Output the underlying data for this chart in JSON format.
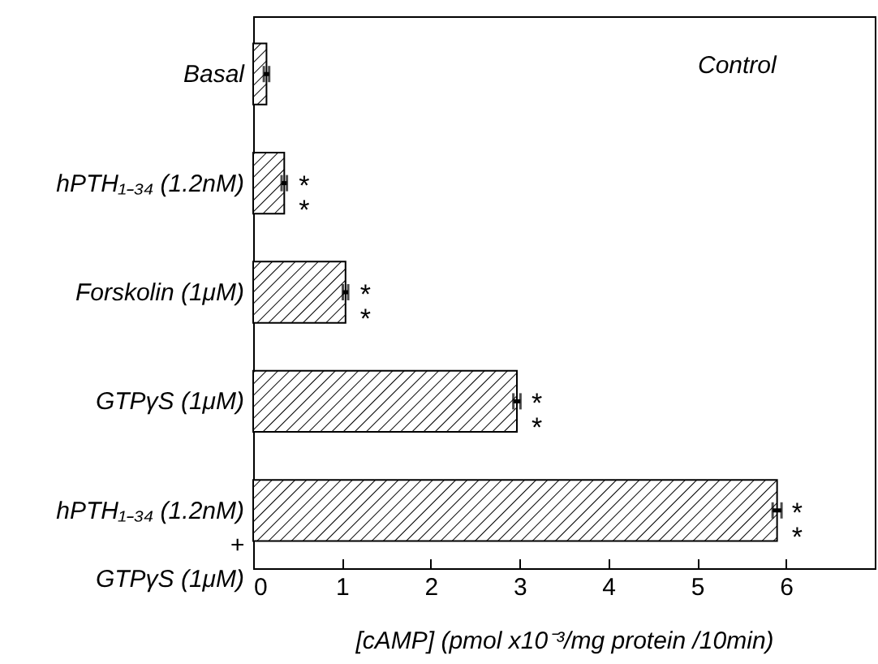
{
  "chart_data": {
    "type": "bar",
    "orientation": "horizontal",
    "categories": [
      "Basal",
      "hPTH₁₋₃₄ (1.2nM)",
      "Forskolin (1μM)",
      "GTPγS (1μM)",
      "hPTH₁₋₃₄ (1.2nM)\n+\nGTPγS (1μM)"
    ],
    "values": [
      0.15,
      0.35,
      1.04,
      2.97,
      5.9
    ],
    "errors": [
      0.03,
      0.03,
      0.03,
      0.04,
      0.05
    ],
    "color": "#000000",
    "xlabel": "[cAMP]  (pmol  x10⁻³/mg protein /10min)",
    "xlim": [
      0,
      7
    ],
    "xticks": [
      0,
      1,
      2,
      3,
      4,
      5,
      6
    ],
    "annotations": [
      "Control",
      {
        "text": "**",
        "x": 0.35,
        "y": "hPTH₁₋₃₄ (1.2nM)"
      },
      {
        "text": "**",
        "x": 1.04,
        "y": "Forskolin (1μM)"
      },
      {
        "text": "**",
        "x": 2.97,
        "y": "GTPγS (1μM)"
      },
      {
        "text": "**",
        "x": 5.9,
        "y": "hPTH₁₋₃₄ (1.2nM)\n+\nGTPγS (1μM)"
      }
    ],
    "grid": false
  }
}
